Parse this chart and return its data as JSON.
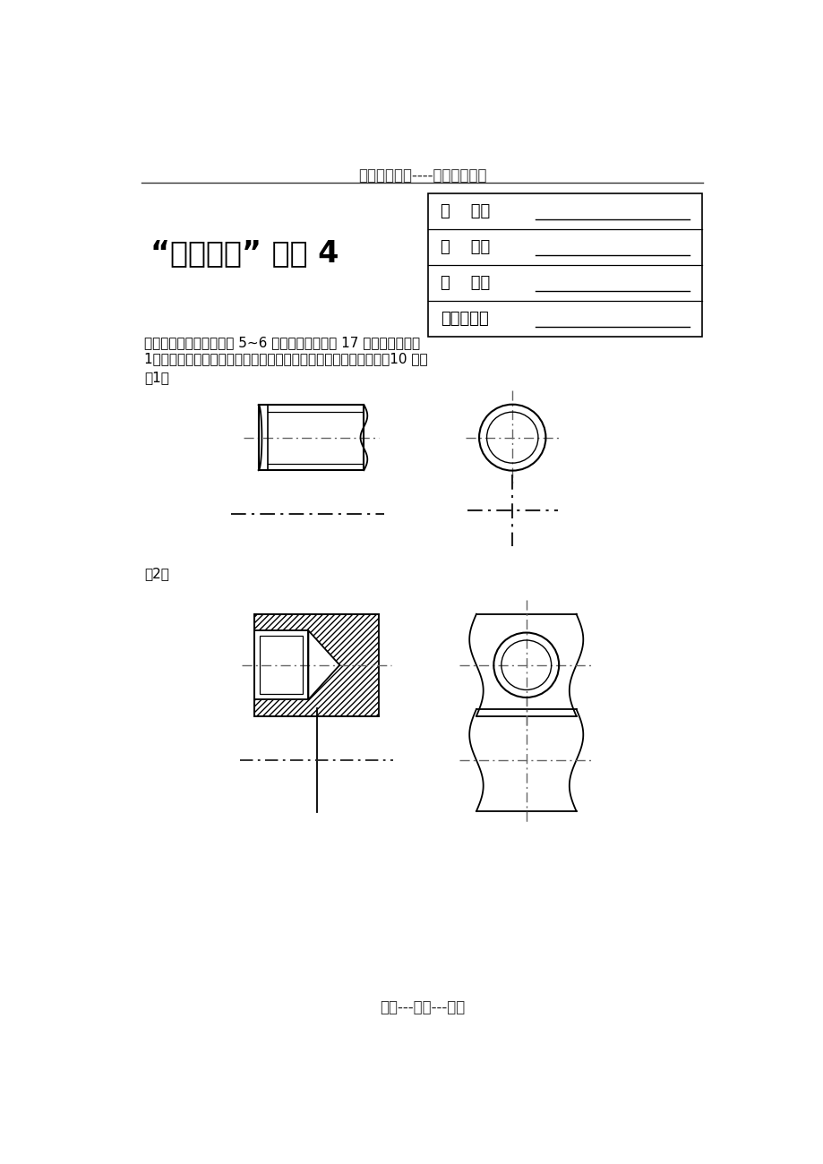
{
  "title_top": "精选优质文档----倾情为你奉上",
  "title_main": "“机械制图” 作业 4",
  "box_labels": [
    "姓    名：",
    "学    号：",
    "得    分：",
    "教师签名："
  ],
  "text1": "（本部分作业覆盖教材第 5~6 章的内容，要求第 17 周以前完成）。",
  "text2": "1．分析下列螺纹画法上的错误，在指定的位置上画出正确的图。（10 分）",
  "label1": "（1）",
  "label2": "（2）",
  "footer": "专心---专注---专业",
  "bg_color": "#ffffff",
  "line_color": "#000000",
  "cl_color": "#666666"
}
